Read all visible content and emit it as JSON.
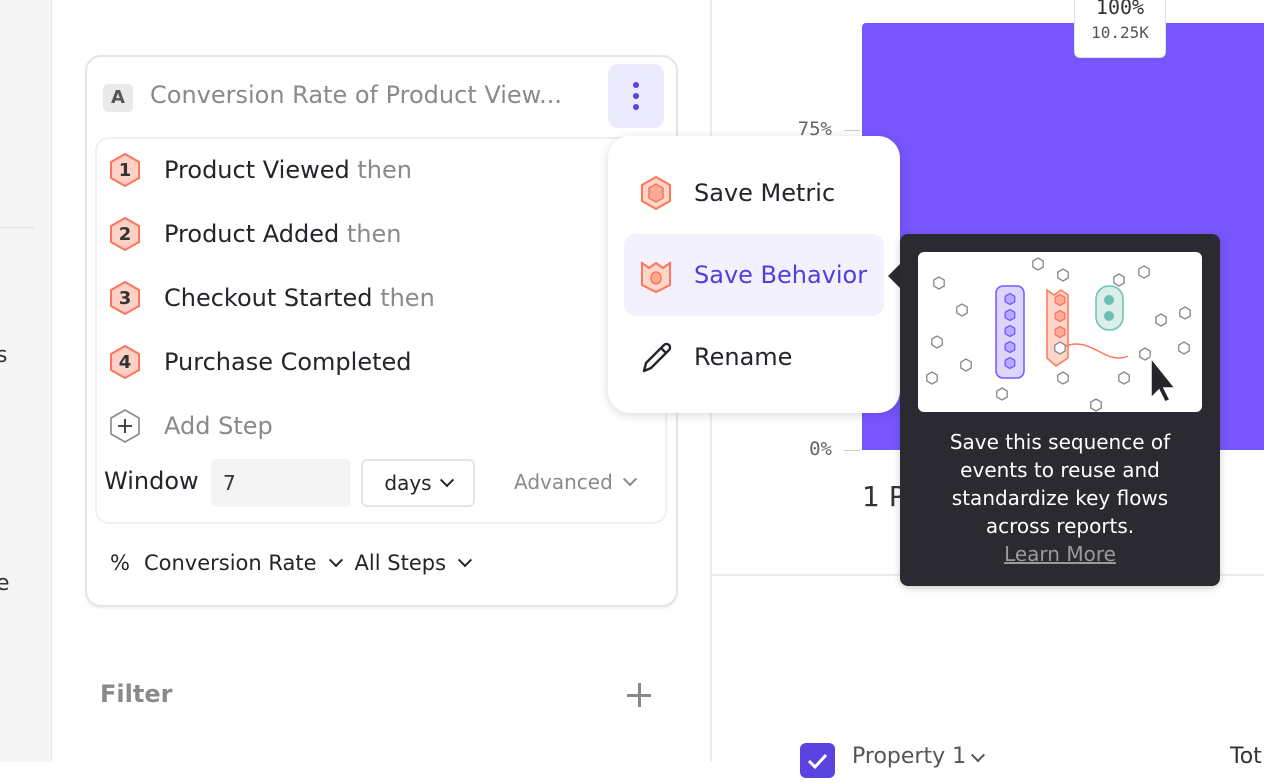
{
  "sidebar": {
    "fragments": [
      "s",
      "e"
    ]
  },
  "metric": {
    "badge": "A",
    "title": "Conversion Rate of Product View...",
    "steps": [
      {
        "num": "1",
        "name": "Product Viewed",
        "suffix": "then"
      },
      {
        "num": "2",
        "name": "Product Added",
        "suffix": "then"
      },
      {
        "num": "3",
        "name": "Checkout Started",
        "suffix": "then"
      },
      {
        "num": "4",
        "name": "Purchase Completed",
        "suffix": ""
      }
    ],
    "add_step": "Add Step",
    "window_label": "Window",
    "window_value": "7",
    "window_unit": "days",
    "advanced": "Advanced",
    "measure_symbol": "%",
    "measure": "Conversion Rate",
    "steps_scope": "All Steps",
    "step_color": "#ff7557"
  },
  "filter": {
    "label": "Filter"
  },
  "menu": {
    "items": [
      {
        "label": "Save Metric",
        "icon": "hexagon-metric-icon"
      },
      {
        "label": "Save Behavior",
        "icon": "behavior-icon"
      },
      {
        "label": "Rename",
        "icon": "pencil-icon"
      }
    ]
  },
  "tooltip": {
    "lines": [
      "Save this sequence of",
      "events to reuse and",
      "standardize key flows",
      "across reports."
    ],
    "link": "Learn More"
  },
  "chart_data": {
    "type": "bar",
    "yticks": [
      "75%",
      "0%"
    ],
    "bar_color": "#7856ff",
    "categories": [
      "1 P"
    ],
    "values": [
      100
    ],
    "data_labels": [
      {
        "percent": "100%",
        "count": "10.25K"
      }
    ],
    "ylim": [
      0,
      100
    ]
  },
  "table": {
    "column": "Property 1",
    "column2": "Tot"
  }
}
